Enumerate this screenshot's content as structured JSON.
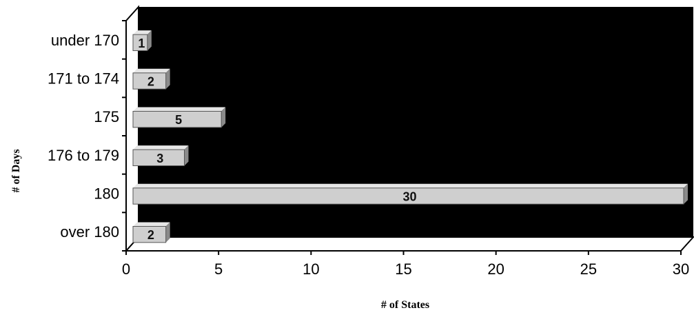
{
  "chart_data": {
    "type": "bar",
    "orientation": "horizontal",
    "style": "3d",
    "categories": [
      "under 170",
      "171 to 174",
      "175",
      "176 to 179",
      "180",
      "over 180"
    ],
    "values": [
      1,
      2,
      5,
      3,
      30,
      2
    ],
    "data_labels": [
      "1",
      "2",
      "5",
      "3",
      "30",
      "2"
    ],
    "xlabel": "# of States",
    "ylabel": "# of Days",
    "xlim": [
      0,
      30
    ],
    "xticks": [
      "0",
      "5",
      "10",
      "15",
      "20",
      "25",
      "30"
    ],
    "grid": false,
    "legend": "none",
    "colors": {
      "plot_background": "#000000",
      "bar_fill": "#cfcfcf",
      "bar_side": "#8a8a8a",
      "axis": "#000000"
    }
  }
}
